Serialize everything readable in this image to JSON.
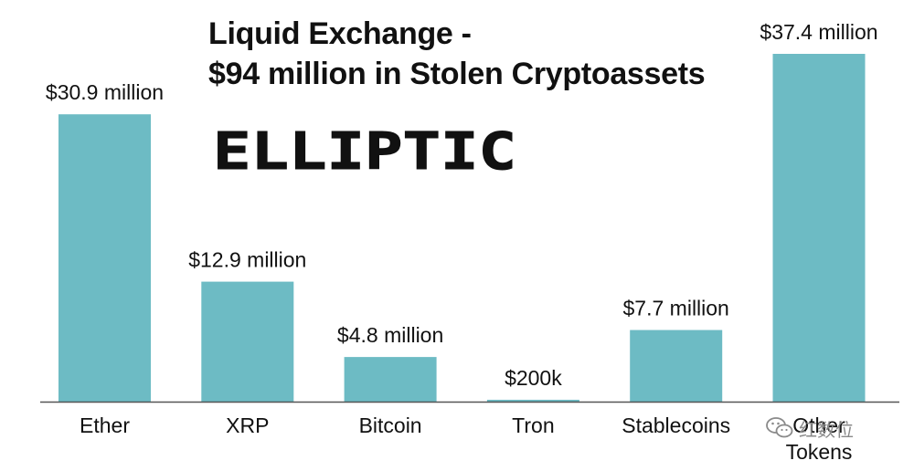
{
  "title": {
    "line1": "Liquid Exchange -",
    "line2": "$94 million in Stolen Cryptoassets"
  },
  "logo": {
    "text": "ELLIPTIC"
  },
  "watermark": {
    "text": "红数位"
  },
  "colors": {
    "bar": "#6dbbc4",
    "axis": "#555555",
    "text": "#111111"
  },
  "chart_data": {
    "type": "bar",
    "title": "Liquid Exchange - $94 million in Stolen Cryptoassets",
    "categories": [
      "Ether",
      "XRP",
      "Bitcoin",
      "Tron",
      "Stablecoins",
      "Other Tokens"
    ],
    "values": [
      30.9,
      12.9,
      4.8,
      0.2,
      7.7,
      37.4
    ],
    "value_unit": "million USD",
    "data_labels": [
      "$30.9 million",
      "$12.9 million",
      "$4.8 million",
      "$200k",
      "$7.7 million",
      "$37.4 million"
    ],
    "category_label_lines": [
      [
        "Ether"
      ],
      [
        "XRP"
      ],
      [
        "Bitcoin"
      ],
      [
        "Tron"
      ],
      [
        "Stablecoins"
      ],
      [
        "Other",
        "Tokens"
      ]
    ],
    "xlabel": "",
    "ylabel": "",
    "ylim": [
      0,
      37.4
    ],
    "grid": false,
    "legend": "none"
  }
}
